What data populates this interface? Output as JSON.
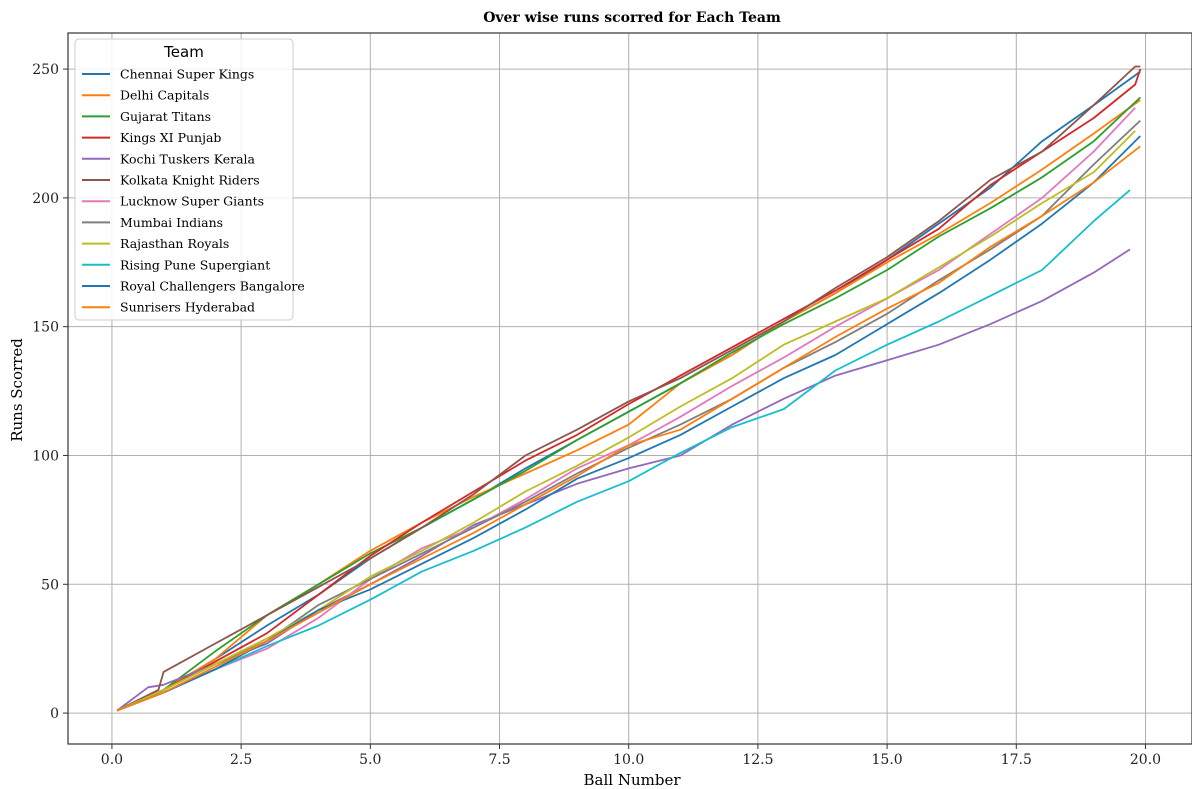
{
  "chart_data": {
    "type": "line",
    "title": "Over wise runs scorred for Each Team",
    "xlabel": "Ball Number",
    "ylabel": "Runs Scorred",
    "xlim": [
      -0.85,
      20.9
    ],
    "ylim": [
      -12,
      264
    ],
    "xticks": [
      "0.0",
      "2.5",
      "5.0",
      "7.5",
      "10.0",
      "12.5",
      "15.0",
      "17.5",
      "20.0"
    ],
    "yticks": [
      "0",
      "50",
      "100",
      "150",
      "200",
      "250"
    ],
    "grid": true,
    "legend_title": "Team",
    "legend_position": "upper-left",
    "series": [
      {
        "name": "Chennai Super Kings",
        "color": "#1f77b4",
        "x": [
          0.1,
          1,
          2,
          3,
          4,
          5,
          6,
          7,
          8,
          9,
          10,
          11,
          12,
          13,
          14,
          15,
          16,
          17,
          18,
          19,
          19.9
        ],
        "y": [
          1,
          9,
          21,
          34,
          46,
          60,
          72,
          83,
          95,
          106,
          117,
          128,
          139,
          152,
          163,
          176,
          190,
          204,
          222,
          236,
          249
        ]
      },
      {
        "name": "Delhi Capitals",
        "color": "#ff7f0e",
        "x": [
          0.1,
          1,
          2,
          3,
          4,
          5,
          6,
          7,
          8,
          9,
          10,
          11,
          12,
          13,
          14,
          15,
          16,
          17,
          18,
          19,
          19.9
        ],
        "y": [
          1,
          9,
          21,
          38,
          50,
          63,
          74,
          84,
          93,
          102,
          112,
          128,
          139,
          152,
          163,
          175,
          186,
          198,
          211,
          225,
          238
        ]
      },
      {
        "name": "Gujarat Titans",
        "color": "#2ca02c",
        "x": [
          0.1,
          1,
          2,
          3,
          4,
          5,
          6,
          7,
          8,
          9,
          10,
          11,
          12,
          13,
          14,
          15,
          16,
          17,
          18,
          19,
          19.9
        ],
        "y": [
          1,
          9,
          24,
          38,
          50,
          62,
          72,
          83,
          94,
          106,
          117,
          128,
          140,
          151,
          161,
          172,
          185,
          196,
          208,
          222,
          239
        ]
      },
      {
        "name": "Kings XI Punjab",
        "color": "#d62728",
        "x": [
          0.1,
          1,
          2,
          3,
          4,
          5,
          6,
          7,
          8,
          9,
          10,
          11,
          12,
          13,
          14,
          15,
          16,
          17,
          18,
          19,
          19.8,
          19.9
        ],
        "y": [
          1,
          9,
          20,
          31,
          46,
          61,
          74,
          86,
          98,
          108,
          120,
          131,
          142,
          153,
          164,
          176,
          188,
          205,
          218,
          231,
          244,
          250
        ]
      },
      {
        "name": "Kochi Tuskers Kerala",
        "color": "#9467bd",
        "x": [
          0.1,
          0.7,
          1,
          2,
          3,
          4,
          5,
          6,
          7,
          8,
          9,
          10,
          11,
          12,
          13,
          14,
          15,
          16,
          17,
          18,
          19,
          19.7
        ],
        "y": [
          1,
          10,
          11,
          19,
          27,
          40,
          50,
          61,
          73,
          81,
          89,
          95,
          100,
          112,
          122,
          131,
          137,
          143,
          151,
          160,
          171,
          180
        ]
      },
      {
        "name": "Kolkata Knight Riders",
        "color": "#8c564b",
        "x": [
          0.1,
          0.9,
          1,
          2,
          3,
          4,
          5,
          6,
          7,
          8,
          9,
          10,
          11,
          12,
          13,
          14,
          15,
          16,
          17,
          18,
          19,
          19.8,
          19.9
        ],
        "y": [
          1,
          9,
          16,
          27,
          38,
          49,
          60,
          72,
          85,
          100,
          110,
          121,
          130,
          141,
          152,
          165,
          177,
          191,
          207,
          218,
          236,
          251,
          251
        ]
      },
      {
        "name": "Lucknow Super Giants",
        "color": "#e377c2",
        "x": [
          0.1,
          1,
          2,
          3,
          4,
          5,
          6,
          7,
          8,
          9,
          10,
          11,
          12,
          13,
          14,
          15,
          16,
          17,
          18,
          19,
          19.8
        ],
        "y": [
          1,
          8,
          17,
          25,
          37,
          52,
          64,
          72,
          83,
          95,
          104,
          115,
          127,
          138,
          150,
          161,
          172,
          186,
          200,
          218,
          235
        ]
      },
      {
        "name": "Mumbai Indians",
        "color": "#7f7f7f",
        "x": [
          0.1,
          1,
          2,
          3,
          4,
          5,
          6,
          7,
          8,
          9,
          10,
          11,
          12,
          13,
          14,
          15,
          16,
          17,
          18,
          19,
          19.9
        ],
        "y": [
          1,
          9,
          19,
          28,
          42,
          52,
          62,
          72,
          82,
          93,
          103,
          112,
          122,
          134,
          144,
          155,
          168,
          180,
          193,
          213,
          230
        ]
      },
      {
        "name": "Rajasthan Royals",
        "color": "#bcbd22",
        "x": [
          0.1,
          1,
          2,
          3,
          4,
          5,
          6,
          7,
          8,
          9,
          10,
          11,
          12,
          13,
          14,
          15,
          16,
          17,
          18,
          19,
          19.8
        ],
        "y": [
          1,
          9,
          19,
          29,
          40,
          53,
          63,
          74,
          86,
          96,
          107,
          119,
          130,
          143,
          152,
          161,
          173,
          185,
          198,
          210,
          226
        ]
      },
      {
        "name": "Rising Pune Supergiant",
        "color": "#17becf",
        "x": [
          0.1,
          1,
          2,
          3,
          4,
          5,
          6,
          7,
          8,
          9,
          10,
          11,
          12,
          13,
          14,
          15,
          16,
          17,
          18,
          19,
          19.7
        ],
        "y": [
          1,
          8,
          17,
          26,
          34,
          44,
          55,
          63,
          72,
          82,
          90,
          101,
          111,
          118,
          133,
          143,
          152,
          162,
          172,
          191,
          203
        ]
      },
      {
        "name": "Royal Challengers Bangalore",
        "color": "#1f77b4",
        "x": [
          0.1,
          1,
          2,
          3,
          4,
          5,
          6,
          7,
          8,
          9,
          10,
          11,
          12,
          13,
          14,
          15,
          16,
          17,
          18,
          19,
          19.9
        ],
        "y": [
          1,
          8,
          17,
          28,
          40,
          48,
          58,
          68,
          79,
          91,
          99,
          108,
          119,
          130,
          139,
          151,
          163,
          176,
          190,
          206,
          224
        ]
      },
      {
        "name": "Sunrisers Hyderabad",
        "color": "#ff7f0e",
        "x": [
          0.1,
          1,
          2,
          3,
          4,
          5,
          6,
          7,
          8,
          9,
          10,
          11,
          12,
          13,
          14,
          15,
          16,
          17,
          18,
          19,
          19.9
        ],
        "y": [
          1,
          8,
          18,
          28,
          39,
          50,
          60,
          70,
          81,
          92,
          104,
          110,
          122,
          134,
          146,
          157,
          167,
          181,
          193,
          206,
          220
        ]
      }
    ]
  }
}
